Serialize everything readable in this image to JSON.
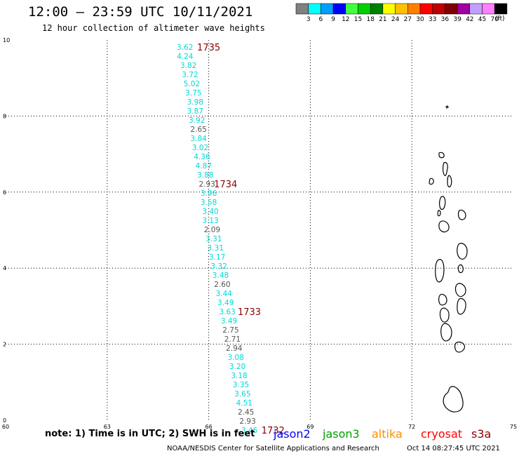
{
  "header": {
    "title": "12:00 – 23:59 UTC 10/11/2021",
    "subtitle": "12 hour collection of altimeter wave heights"
  },
  "legend": {
    "colors": [
      "#808080",
      "#00ffff",
      "#00a0ff",
      "#0000ff",
      "#40ff40",
      "#00d000",
      "#008000",
      "#ffff00",
      "#ffc000",
      "#ff8000",
      "#ff0000",
      "#c00000",
      "#800000",
      "#a000a0",
      "#c0a0ff",
      "#ff80ff",
      "#000000"
    ],
    "labels": [
      "3",
      "6",
      "9",
      "12",
      "15",
      "18",
      "21",
      "24",
      "27",
      "30",
      "33",
      "36",
      "39",
      "42",
      "45",
      "70"
    ],
    "units": "(ft)"
  },
  "axes": {
    "x_ticks": [
      "60",
      "63",
      "66",
      "69",
      "72",
      "75"
    ],
    "y_ticks": [
      "0",
      "2",
      "4",
      "6",
      "8",
      "10"
    ]
  },
  "chart_data": {
    "type": "scatter",
    "xlim": [
      60,
      75
    ],
    "ylim": [
      0,
      10
    ],
    "grid": true,
    "swh_points": [
      {
        "x": 65.3,
        "y": 9.82,
        "v": "3.62",
        "c": "cyan"
      },
      {
        "x": 65.3,
        "y": 9.58,
        "v": "4.24",
        "c": "cyan"
      },
      {
        "x": 65.4,
        "y": 9.34,
        "v": "3.82",
        "c": "cyan"
      },
      {
        "x": 65.45,
        "y": 9.1,
        "v": "3.72",
        "c": "cyan"
      },
      {
        "x": 65.5,
        "y": 8.86,
        "v": "5.02",
        "c": "cyan"
      },
      {
        "x": 65.55,
        "y": 8.62,
        "v": "3.75",
        "c": "cyan"
      },
      {
        "x": 65.6,
        "y": 8.38,
        "v": "3.98",
        "c": "cyan"
      },
      {
        "x": 65.6,
        "y": 8.14,
        "v": "3.87",
        "c": "cyan"
      },
      {
        "x": 65.65,
        "y": 7.9,
        "v": "3.92",
        "c": "cyan"
      },
      {
        "x": 65.7,
        "y": 7.66,
        "v": "2.65",
        "c": "gray"
      },
      {
        "x": 65.7,
        "y": 7.42,
        "v": "3.84",
        "c": "cyan"
      },
      {
        "x": 65.75,
        "y": 7.18,
        "v": "3.02",
        "c": "cyan"
      },
      {
        "x": 65.8,
        "y": 6.94,
        "v": "4.36",
        "c": "cyan"
      },
      {
        "x": 65.85,
        "y": 6.7,
        "v": "4.87",
        "c": "cyan"
      },
      {
        "x": 65.9,
        "y": 6.46,
        "v": "3.88",
        "c": "cyan"
      },
      {
        "x": 65.95,
        "y": 6.22,
        "v": "2.93",
        "c": "gray"
      },
      {
        "x": 66.0,
        "y": 5.98,
        "v": "3.96",
        "c": "cyan"
      },
      {
        "x": 66.0,
        "y": 5.74,
        "v": "3.58",
        "c": "cyan"
      },
      {
        "x": 66.05,
        "y": 5.5,
        "v": "3.40",
        "c": "cyan"
      },
      {
        "x": 66.05,
        "y": 5.26,
        "v": "3.13",
        "c": "cyan"
      },
      {
        "x": 66.1,
        "y": 5.02,
        "v": "2.09",
        "c": "gray"
      },
      {
        "x": 66.15,
        "y": 4.78,
        "v": "3.31",
        "c": "cyan"
      },
      {
        "x": 66.2,
        "y": 4.54,
        "v": "3.31",
        "c": "cyan"
      },
      {
        "x": 66.25,
        "y": 4.3,
        "v": "3.17",
        "c": "cyan"
      },
      {
        "x": 66.3,
        "y": 4.06,
        "v": "3.32",
        "c": "cyan"
      },
      {
        "x": 66.35,
        "y": 3.82,
        "v": "3.48",
        "c": "cyan"
      },
      {
        "x": 66.4,
        "y": 3.58,
        "v": "2.60",
        "c": "gray"
      },
      {
        "x": 66.45,
        "y": 3.34,
        "v": "3.44",
        "c": "cyan"
      },
      {
        "x": 66.5,
        "y": 3.1,
        "v": "3.49",
        "c": "cyan"
      },
      {
        "x": 66.55,
        "y": 2.86,
        "v": "3.63",
        "c": "cyan"
      },
      {
        "x": 66.6,
        "y": 2.62,
        "v": "3.49",
        "c": "cyan"
      },
      {
        "x": 66.65,
        "y": 2.38,
        "v": "2.75",
        "c": "gray"
      },
      {
        "x": 66.7,
        "y": 2.14,
        "v": "2.71",
        "c": "gray"
      },
      {
        "x": 66.75,
        "y": 1.9,
        "v": "2.94",
        "c": "gray"
      },
      {
        "x": 66.8,
        "y": 1.66,
        "v": "3.08",
        "c": "cyan"
      },
      {
        "x": 66.85,
        "y": 1.42,
        "v": "3.20",
        "c": "cyan"
      },
      {
        "x": 66.9,
        "y": 1.18,
        "v": "3.18",
        "c": "cyan"
      },
      {
        "x": 66.95,
        "y": 0.94,
        "v": "3.35",
        "c": "cyan"
      },
      {
        "x": 67.0,
        "y": 0.7,
        "v": "3.65",
        "c": "cyan"
      },
      {
        "x": 67.05,
        "y": 0.46,
        "v": "4.51",
        "c": "cyan"
      },
      {
        "x": 67.1,
        "y": 0.22,
        "v": "2.45",
        "c": "gray"
      },
      {
        "x": 67.15,
        "y": -0.02,
        "v": "2.93",
        "c": "gray"
      },
      {
        "x": 67.2,
        "y": -0.26,
        "v": "3.46",
        "c": "cyan"
      }
    ],
    "time_labels": [
      {
        "x": 66.0,
        "y": 9.82,
        "t": "1735"
      },
      {
        "x": 66.5,
        "y": 6.22,
        "t": "1734"
      },
      {
        "x": 67.2,
        "y": 2.86,
        "t": "1733"
      },
      {
        "x": 67.9,
        "y": -0.26,
        "t": "1732"
      }
    ]
  },
  "footer": {
    "note": "note: 1) Time is in UTC; 2) SWH is in feet",
    "satellites": [
      {
        "name": "jason2",
        "color": "#0000ff"
      },
      {
        "name": "jason3",
        "color": "#00a000"
      },
      {
        "name": "altika",
        "color": "#ff8c00"
      },
      {
        "name": "cryosat",
        "color": "#ff0000"
      },
      {
        "name": "s3a",
        "color": "#8b0000"
      }
    ],
    "credit": "NOAA/NESDIS Center for Satellite Applications and Research",
    "timestamp": "Oct 14 08:27:45 UTC 2021"
  }
}
